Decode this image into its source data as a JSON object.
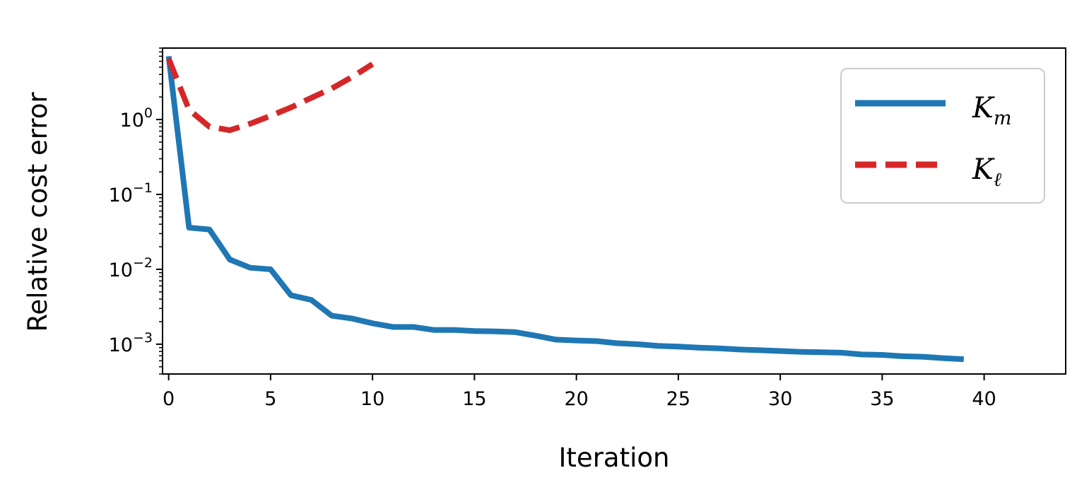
{
  "chart_data": {
    "type": "line",
    "xlabel": "Iteration",
    "ylabel": "Relative cost error",
    "yscale": "log",
    "xlim": [
      -0.3,
      44
    ],
    "ylim": [
      0.0004,
      9
    ],
    "xticks": [
      0,
      5,
      10,
      15,
      20,
      25,
      30,
      35,
      40
    ],
    "xtick_labels": [
      "0",
      "5",
      "10",
      "15",
      "20",
      "25",
      "30",
      "35",
      "40"
    ],
    "yticks": [
      {
        "value": 1,
        "base": "10",
        "exp": "0"
      },
      {
        "value": 0.1,
        "base": "10",
        "exp": "−1"
      },
      {
        "value": 0.01,
        "base": "10",
        "exp": "−2"
      },
      {
        "value": 0.001,
        "base": "10",
        "exp": "−3"
      }
    ],
    "grid": false,
    "legend_position": "top-right",
    "series": [
      {
        "name_main": "K",
        "name_sub": "m",
        "color": "#1f77b4",
        "style": "solid",
        "x": [
          0,
          1,
          2,
          3,
          4,
          5,
          6,
          7,
          8,
          9,
          10,
          11,
          12,
          13,
          14,
          15,
          16,
          17,
          18,
          19,
          20,
          21,
          22,
          23,
          24,
          25,
          26,
          27,
          28,
          29,
          30,
          31,
          32,
          33,
          34,
          35,
          36,
          37,
          38,
          39
        ],
        "y": [
          7,
          0.036,
          0.034,
          0.0135,
          0.0105,
          0.01,
          0.0045,
          0.0039,
          0.0024,
          0.0022,
          0.0019,
          0.0017,
          0.0017,
          0.00155,
          0.00155,
          0.0015,
          0.00148,
          0.00145,
          0.0013,
          0.00115,
          0.00112,
          0.0011,
          0.00103,
          0.001,
          0.00095,
          0.00093,
          0.0009,
          0.00088,
          0.00085,
          0.00083,
          0.00081,
          0.00079,
          0.00078,
          0.00077,
          0.00073,
          0.00072,
          0.00069,
          0.00068,
          0.00065,
          0.00063
        ]
      },
      {
        "name_main": "K",
        "name_sub": "ℓ",
        "color": "#d62728",
        "style": "dashed",
        "x": [
          0,
          1,
          2,
          3,
          4,
          5,
          6,
          7,
          8,
          9,
          10
        ],
        "y": [
          6.5,
          1.35,
          0.8,
          0.72,
          0.88,
          1.12,
          1.45,
          1.95,
          2.6,
          3.7,
          5.5
        ]
      }
    ]
  }
}
